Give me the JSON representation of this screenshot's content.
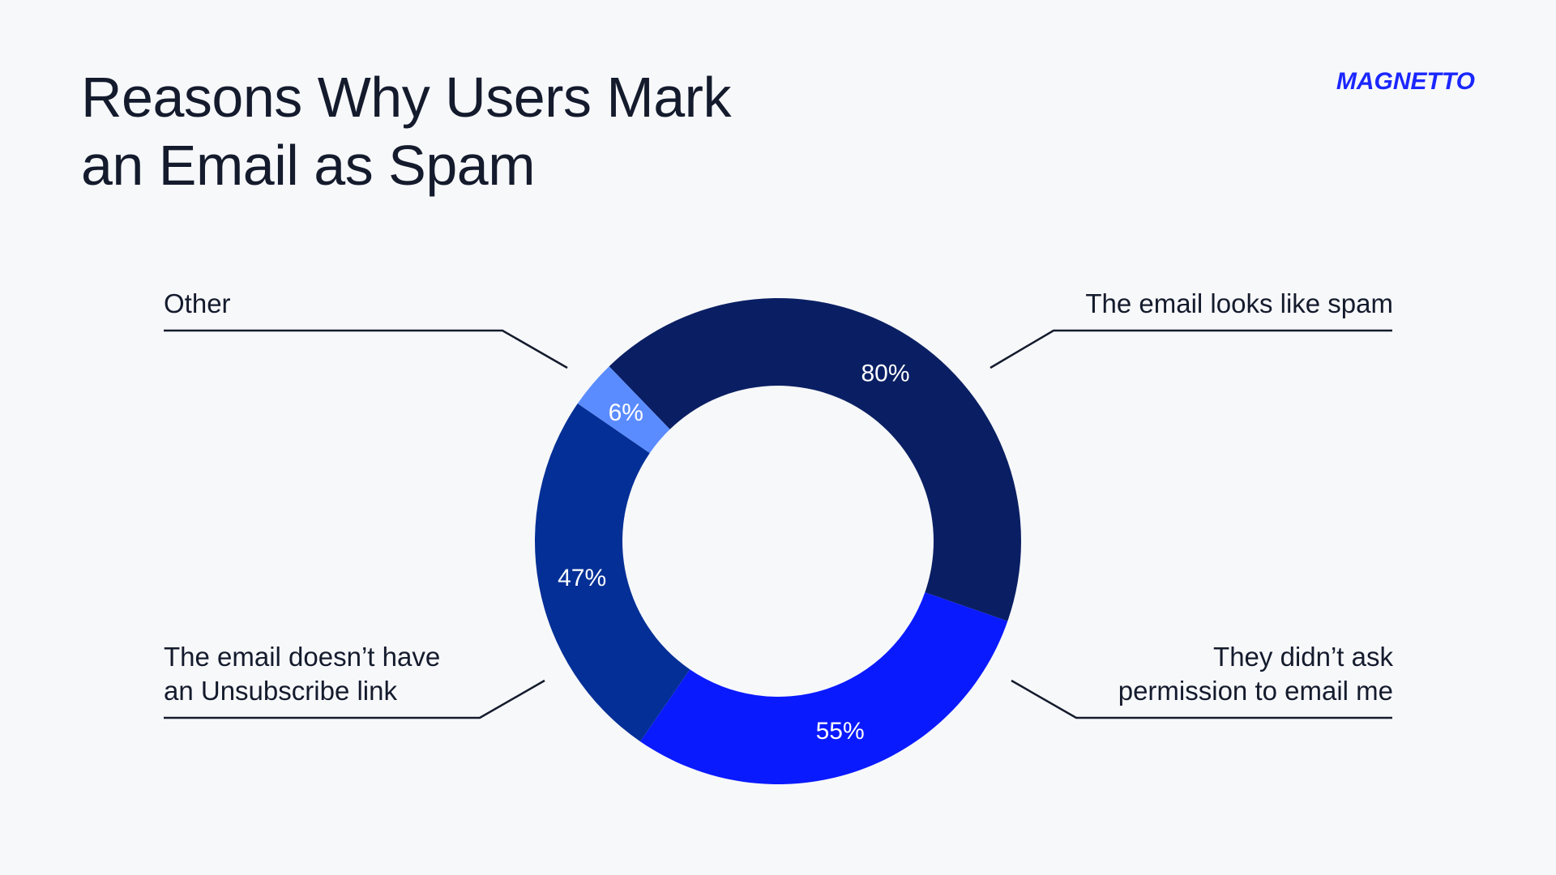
{
  "header": {
    "title_line1": "Reasons Why Users Mark",
    "title_line2": "an Email as Spam",
    "brand": "MAGNETTO"
  },
  "chart_data": {
    "type": "donut",
    "title": "Reasons Why Users Mark an Email as Spam",
    "segments": [
      {
        "label": "The email looks like spam",
        "value": 80,
        "value_label": "80%",
        "color": "#0a1f63"
      },
      {
        "label": "They didn’t ask permission to email me",
        "value": 55,
        "value_label": "55%",
        "color": "#0a1aff"
      },
      {
        "label": "The email doesn’t have an Unsubscribe link",
        "value": 47,
        "value_label": "47%",
        "color": "#032f96"
      },
      {
        "label": "Other",
        "value": 6,
        "value_label": "6%",
        "color": "#5b8cff"
      }
    ]
  },
  "labels": {
    "other": "Other",
    "spam": "The email looks like spam",
    "unsub_line1": "The email doesn’t have",
    "unsub_line2": "an Unsubscribe link",
    "perm_line1": "They didn’t ask",
    "perm_line2": "permission to email me"
  }
}
